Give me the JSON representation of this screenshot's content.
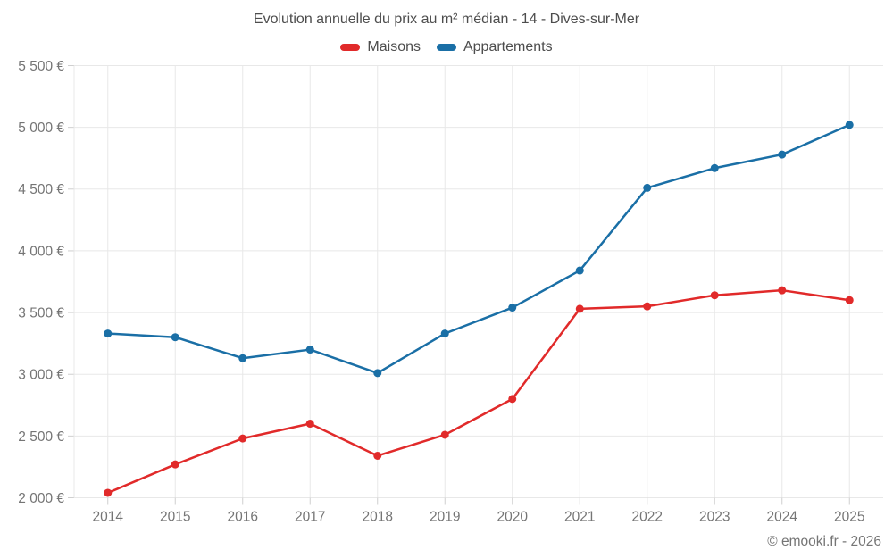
{
  "page": {
    "footer": "© emooki.fr - 2026"
  },
  "chart_data": {
    "type": "line",
    "title": "Evolution annuelle du prix au m² médian - 14 - Dives-sur-Mer",
    "categories": [
      "2014",
      "2015",
      "2016",
      "2017",
      "2018",
      "2019",
      "2020",
      "2021",
      "2022",
      "2023",
      "2024",
      "2025"
    ],
    "series": [
      {
        "name": "Maisons",
        "color": "#e12a2a",
        "values": [
          2040,
          2270,
          2480,
          2600,
          2340,
          2510,
          2800,
          3530,
          3550,
          3640,
          3680,
          3600
        ]
      },
      {
        "name": "Appartements",
        "color": "#1a6fa6",
        "values": [
          3330,
          3300,
          3130,
          3200,
          3010,
          3330,
          3540,
          3840,
          4510,
          4670,
          4780,
          5020
        ]
      }
    ],
    "ylim": [
      2000,
      5500
    ],
    "y_ticks": [
      2000,
      2500,
      3000,
      3500,
      4000,
      4500,
      5000,
      5500
    ],
    "y_tick_labels": [
      "2 000 €",
      "2 500 €",
      "3 000 €",
      "3 500 €",
      "4 000 €",
      "4 500 €",
      "5 000 €",
      "5 500 €"
    ],
    "ylabel": "",
    "xlabel": "",
    "grid": true,
    "legend_position": "top",
    "colors": {
      "grid": "#e8e8e8",
      "tick": "#cfcfcf",
      "axis_text": "#757575",
      "title_text": "#4d4d4d"
    }
  }
}
